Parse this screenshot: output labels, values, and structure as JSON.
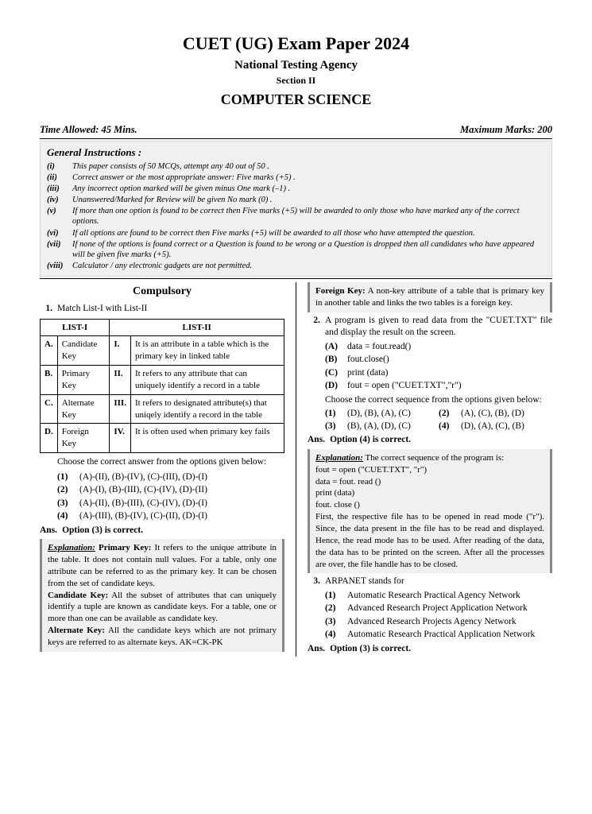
{
  "header": {
    "title": "CUET (UG) Exam Paper 2024",
    "agency": "National Testing Agency",
    "section": "Section II",
    "subject": "COMPUTER SCIENCE"
  },
  "meta": {
    "time": "Time Allowed: 45 Mins.",
    "marks": "Maximum Marks: 200"
  },
  "instructions": {
    "title": "General Instructions :",
    "items": [
      {
        "n": "(i)",
        "t": "This paper consists of 50 MCQs, attempt any 40 out of 50 ."
      },
      {
        "n": "(ii)",
        "t": "Correct answer or the most appropriate answer: Five marks (+5) ."
      },
      {
        "n": "(iii)",
        "t": "Any incorrect option marked will be given minus One mark (–1) ."
      },
      {
        "n": "(iv)",
        "t": "Unanswered/Marked for Review will be given No mark (0) ."
      },
      {
        "n": "(v)",
        "t": "If more than one option is found to be correct then Five marks (+5) will be awarded to only those who have marked any of the correct options."
      },
      {
        "n": "(vi)",
        "t": "If all options are found to be correct then Five marks (+5) will be awarded to all those who have attempted the question."
      },
      {
        "n": "(vii)",
        "t": "If none of the options is found correct or a Question is found to be wrong or a Question is dropped then all candidates who have appeared will be given five marks (+5)."
      },
      {
        "n": "(viii)",
        "t": "Calculator / any electronic gadgets are not permitted."
      }
    ]
  },
  "compulsory_heading": "Compulsory",
  "q1": {
    "num": "1.",
    "text": "Match List-I with List-II",
    "table": {
      "h1": "LIST-I",
      "h2": "LIST-II",
      "rows": [
        {
          "a": "A.",
          "at": "Candidate Key",
          "b": "I.",
          "bt": "It is an attribute in a table which is the primary key in linked table"
        },
        {
          "a": "B.",
          "at": "Primary Key",
          "b": "II.",
          "bt": "It refers to any attribute that can uniquely identify a record in a table"
        },
        {
          "a": "C.",
          "at": "Alternate Key",
          "b": "III.",
          "bt": "It refers to designated attribute(s) that uniqely identify a record in the table"
        },
        {
          "a": "D.",
          "at": "Foreign Key",
          "b": "IV.",
          "bt": "It is often used when primary key fails"
        }
      ]
    },
    "choose": "Choose the correct answer from the options given below:",
    "opts": [
      {
        "n": "(1)",
        "t": "(A)-(II), (B)-(IV), (C)-(III), (D)-(I)"
      },
      {
        "n": "(2)",
        "t": "(A)-(I), (B)-(III), (C)-(IV), (D)-(II)"
      },
      {
        "n": "(3)",
        "t": "(A)-(II), (B)-(III), (C)-(IV), (D)-(I)"
      },
      {
        "n": "(4)",
        "t": "(A)-(III), (B)-(IV), (C)-(II), (D)-(I)"
      }
    ],
    "ans_lbl": "Ans.",
    "ans": "Option (3) is correct.",
    "expl_title": "Explanation:",
    "expl_pk_h": "Primary Key:",
    "expl_pk": " It refers to the unique attribute in the table. It does not contain null values. For a table, only one attribute can be referred to as the primary key. It can be chosen from the set of candidate keys.",
    "expl_ck_h": "Candidate Key:",
    "expl_ck": " All the subset of attributes that can uniquely identify a tuple are known as candidate keys. For a table, one or more than one can be available as candidate key.",
    "expl_ak_h": "Alternate Key:",
    "expl_ak": " All the candidate keys which are not primary keys are referred to as alternate keys. AK=CK-PK",
    "expl_fk_h": "Foreign Key:",
    "expl_fk": " A non-key attribute of a table that is primary key in another table and links the two tables is a foreign key."
  },
  "q2": {
    "num": "2.",
    "text": "A program is given to read data from the \"CUET.TXT\" file and display the result on the screen.",
    "subopts": [
      {
        "n": "(A)",
        "t": "data = fout.read()"
      },
      {
        "n": "(B)",
        "t": "fout.close()"
      },
      {
        "n": "(C)",
        "t": "print (data)"
      },
      {
        "n": "(D)",
        "t": "fout = open (\"CUET.TXT\",\"r\")"
      }
    ],
    "choose": "Choose the correct sequence from the options given below:",
    "opts": [
      {
        "n": "(1)",
        "t": "(D), (B), (A), (C)"
      },
      {
        "n": "(2)",
        "t": "(A), (C), (B), (D)"
      },
      {
        "n": "(3)",
        "t": "(B), (A), (D), (C)"
      },
      {
        "n": "(4)",
        "t": "(D), (A), (C), (B)"
      }
    ],
    "ans_lbl": "Ans.",
    "ans": "Option (4) is correct.",
    "expl_title": "Explanation:",
    "expl_intro": " The correct sequence of the program is:",
    "expl_lines": [
      "fout = open (\"CUET.TXT\", \"r\")",
      "data = fout. read ()",
      "print (data)",
      "fout. close ()"
    ],
    "expl_body": "First, the respective file has to be opened in read mode (\"r\"). Since, the data present in the file has to be read and displayed. Hence, the read mode has to be used. After reading of the data, the data has to be printed on the screen. After all the processes are over, the file handle has to be closed."
  },
  "q3": {
    "num": "3.",
    "text": "ARPANET stands for",
    "opts": [
      {
        "n": "(1)",
        "t": "Automatic Research Practical Agency Network"
      },
      {
        "n": "(2)",
        "t": "Advanced Research Project Application Network"
      },
      {
        "n": "(3)",
        "t": "Advanced Research Projects Agency Network"
      },
      {
        "n": "(4)",
        "t": "Automatic Research Practical Application Network"
      }
    ],
    "ans_lbl": "Ans.",
    "ans": "Option (3) is correct."
  }
}
